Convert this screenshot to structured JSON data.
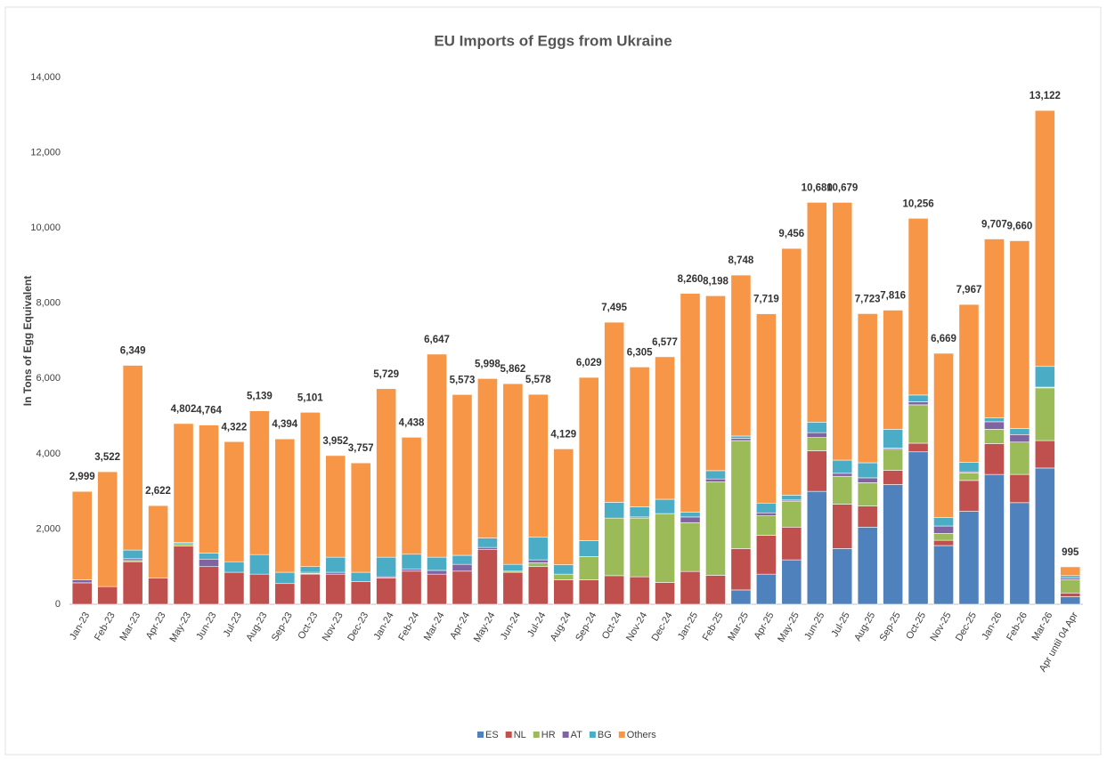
{
  "chart_data": {
    "type": "stacked-bar",
    "title": "EU Imports of Eggs from Ukraine",
    "y_label": "In Tons of Egg Equivalent",
    "categories": [
      "Jan-23",
      "Feb-23",
      "Mar-23",
      "Apr-23",
      "May-23",
      "Jun-23",
      "Jul-23",
      "Aug-23",
      "Sep-23",
      "Oct-23",
      "Nov-23",
      "Dec-23",
      "Jan-24",
      "Feb-24",
      "Mar-24",
      "Apr-24",
      "May-24",
      "Jun-24",
      "Jul-24",
      "Aug-24",
      "Sep-24",
      "Oct-24",
      "Nov-24",
      "Dec-24",
      "Jan-25",
      "Feb-25",
      "Mar-25",
      "Apr-25",
      "May-25",
      "Jun-25",
      "Jul-25",
      "Aug-25",
      "Sep-25",
      "Oct-25",
      "Nov-25",
      "Dec-25",
      "Jan-26",
      "Feb-26",
      "Mar-26",
      "Apr until 04 Apr"
    ],
    "series": [
      {
        "name": "ES",
        "color": "#4f81bd",
        "values": [
          0,
          0,
          0,
          0,
          0,
          0,
          0,
          0,
          0,
          0,
          0,
          0,
          0,
          0,
          0,
          0,
          0,
          0,
          0,
          0,
          0,
          0,
          0,
          0,
          0,
          0,
          380,
          800,
          1180,
          3000,
          1480,
          2050,
          3180,
          4050,
          1560,
          2470,
          3450,
          2700,
          3620,
          200
        ]
      },
      {
        "name": "NL",
        "color": "#c0504d",
        "values": [
          570,
          470,
          1130,
          700,
          1550,
          1000,
          850,
          800,
          550,
          800,
          800,
          600,
          700,
          880,
          800,
          880,
          1450,
          850,
          1000,
          650,
          650,
          760,
          730,
          580,
          870,
          770,
          1100,
          1030,
          870,
          1080,
          1180,
          560,
          380,
          230,
          140,
          820,
          820,
          750,
          730,
          100
        ]
      },
      {
        "name": "HR",
        "color": "#9bbb59",
        "values": [
          0,
          0,
          30,
          0,
          60,
          0,
          0,
          0,
          0,
          20,
          0,
          0,
          0,
          0,
          0,
          0,
          0,
          30,
          100,
          150,
          620,
          1530,
          1560,
          1830,
          1300,
          2480,
          2870,
          520,
          690,
          350,
          740,
          620,
          560,
          1020,
          180,
          200,
          380,
          860,
          1400,
          350
        ]
      },
      {
        "name": "AT",
        "color": "#8064a2",
        "values": [
          80,
          0,
          50,
          0,
          0,
          200,
          0,
          0,
          0,
          30,
          50,
          0,
          30,
          60,
          100,
          180,
          60,
          0,
          80,
          0,
          0,
          0,
          30,
          0,
          150,
          80,
          60,
          80,
          30,
          130,
          80,
          130,
          30,
          80,
          200,
          30,
          200,
          200,
          20,
          50
        ]
      },
      {
        "name": "BG",
        "color": "#4bacc6",
        "values": [
          0,
          0,
          230,
          0,
          30,
          160,
          280,
          520,
          300,
          150,
          400,
          250,
          520,
          390,
          350,
          240,
          250,
          180,
          600,
          250,
          420,
          420,
          270,
          380,
          130,
          220,
          60,
          260,
          130,
          280,
          350,
          400,
          500,
          180,
          230,
          250,
          100,
          160,
          550,
          60
        ]
      },
      {
        "name": "Others",
        "color": "#f79646",
        "values": [
          2349,
          3052,
          4909,
          1922,
          3162,
          3404,
          3192,
          3819,
          3544,
          4101,
          2702,
          2907,
          4479,
          3108,
          5397,
          4273,
          4238,
          4802,
          3798,
          3079,
          4339,
          4785,
          3715,
          3787,
          5810,
          4648,
          4278,
          5029,
          6556,
          5840,
          6849,
          3963,
          3166,
          4696,
          4359,
          4197,
          4757,
          4990,
          6802,
          235
        ]
      }
    ],
    "totals": [
      2999,
      3522,
      6349,
      2622,
      4802,
      4764,
      4322,
      5139,
      4394,
      5101,
      3952,
      3757,
      5729,
      4438,
      6647,
      5573,
      5998,
      5862,
      5578,
      4129,
      6029,
      7495,
      6305,
      6577,
      8260,
      8198,
      8748,
      7719,
      9456,
      10680,
      10679,
      7723,
      7816,
      10256,
      6669,
      7967,
      9707,
      9660,
      13122,
      995
    ],
    "total_labels": [
      "2,999",
      "3,522",
      "6,349",
      "2,622",
      "4,802",
      "4,764",
      "4,322",
      "5,139",
      "4,394",
      "5,101",
      "3,952",
      "3,757",
      "5,729",
      "4,438",
      "6,647",
      "5,573",
      "5,998",
      "5,862",
      "5,578",
      "4,129",
      "6,029",
      "7,495",
      "6,305",
      "6,577",
      "8,260",
      "8,198",
      "8,748",
      "7,719",
      "9,456",
      "10,680",
      "10,679",
      "7,723",
      "7,816",
      "10,256",
      "6,669",
      "7,967",
      "9,707",
      "9,660",
      "13,122",
      "995"
    ],
    "ylim": [
      0,
      14000
    ],
    "yticks": [
      0,
      {
        "value": 2000,
        "label": "2,000"
      },
      {
        "value": 4000,
        "label": "4,000"
      },
      {
        "value": 6000,
        "label": "6,000"
      },
      {
        "value": 8000,
        "label": "8,000"
      },
      {
        "value": 10000,
        "label": "10,000"
      },
      {
        "value": 12000,
        "label": "12,000"
      },
      {
        "value": 14000,
        "label": "14,000"
      }
    ],
    "grid": false,
    "legend": "bottom"
  }
}
